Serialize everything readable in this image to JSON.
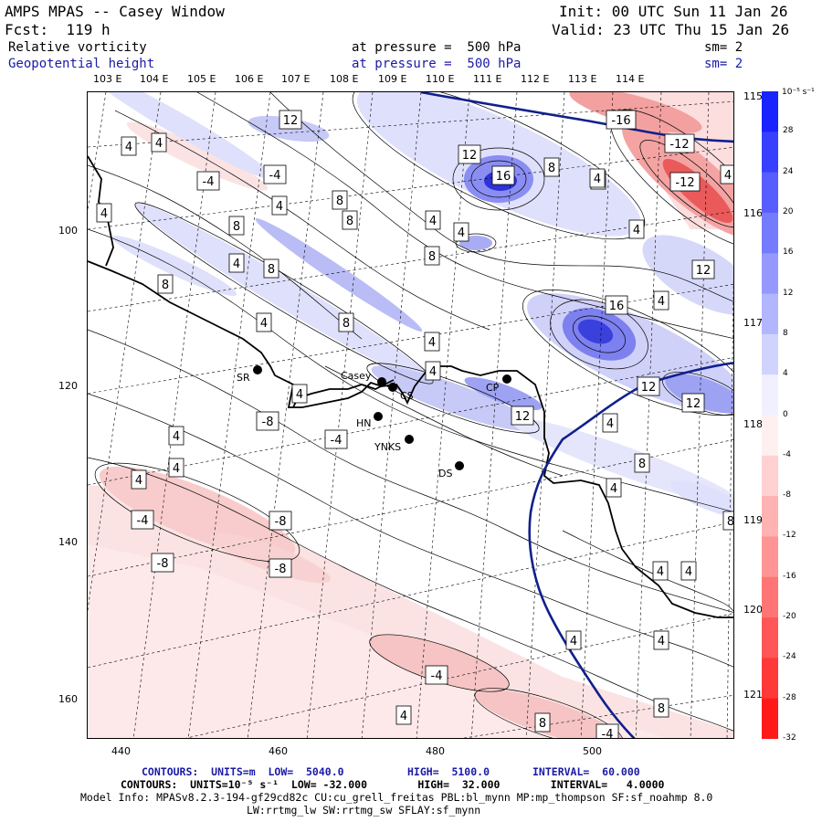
{
  "header": {
    "model": "AMPS MPAS -- Casey Window",
    "init": "Init: 00 UTC Sun 11 Jan 26",
    "fcst": "Fcst:  119 h",
    "valid": "Valid: 23 UTC Thu 15 Jan 26",
    "field1": "Relative vorticity",
    "field1_level": "at pressure =  500 hPa",
    "field1_sm": "sm= 2",
    "field2": "Geopotential height",
    "field2_level": "at pressure =  500 hPa",
    "field2_sm": "sm= 2"
  },
  "colors": {
    "blue_text": "#1a1aa8",
    "positive": "#0a1fe0",
    "negative": "#f21a1a",
    "coast": "#000000",
    "front": "#10208c"
  },
  "top_lon_labels": [
    "103 E",
    "104 E",
    "105 E",
    "106 E",
    "107 E",
    "108 E",
    "109 E",
    "110 E",
    "111 E",
    "112 E",
    "113 E",
    "114 E"
  ],
  "right_lon_labels": [
    "115 E",
    "116 E",
    "117 E",
    "118 E",
    "119 E",
    "120 E",
    "121 E"
  ],
  "x_ticks": [
    "440",
    "460",
    "480",
    "500"
  ],
  "y_ticks": [
    "100",
    "120",
    "140",
    "160"
  ],
  "colorbar": {
    "unit": "10⁻⁵ s⁻¹",
    "labels": [
      "32",
      "28",
      "24",
      "20",
      "16",
      "12",
      "8",
      "4",
      "0",
      "-4",
      "-8",
      "-12",
      "-16",
      "-20",
      "-24",
      "-28",
      "-32"
    ]
  },
  "stations": [
    {
      "name": "SR"
    },
    {
      "name": "Casey"
    },
    {
      "name": "CS"
    },
    {
      "name": "HN"
    },
    {
      "name": "YNKS"
    },
    {
      "name": "DS"
    },
    {
      "name": "CP"
    }
  ],
  "contour_labels": [
    "12",
    "4",
    "4",
    "-4",
    "-4",
    "4",
    "8",
    "8",
    "4",
    "8",
    "12",
    "16",
    "8",
    "8",
    "-16",
    "-12",
    "-12",
    "4",
    "4",
    "4",
    "4",
    "8",
    "4",
    "4",
    "12",
    "8",
    "8",
    "4",
    "8",
    "16",
    "4",
    "12",
    "12",
    "4",
    "4",
    "12",
    "4",
    "8",
    "4",
    "4",
    "4",
    "4",
    "-4",
    "-8",
    "4",
    "-4",
    "-8",
    "-8",
    "-8",
    "-4",
    "4",
    "4",
    "4",
    "8",
    "4",
    "8",
    "-4",
    "8",
    "4"
  ],
  "footer": {
    "line1_a": "CONTOURS:  UNITS=m  LOW=  5040.0",
    "line1_b": "HIGH=  5100.0",
    "line1_c": "INTERVAL=  60.000",
    "line2": "CONTOURS:  UNITS=10⁻⁵ s⁻¹  LOW= -32.000        HIGH=  32.000        INTERVAL=   4.0000",
    "line3": "Model Info: MPASv8.2.3-194-gf29cd82c CU:cu_grell_freitas PBL:bl_mynn MP:mp_thompson SF:sf_noahmp 8.0",
    "line4": "LW:rrtmg_lw SW:rrtmg_sw SFLAY:sf_mynn"
  }
}
